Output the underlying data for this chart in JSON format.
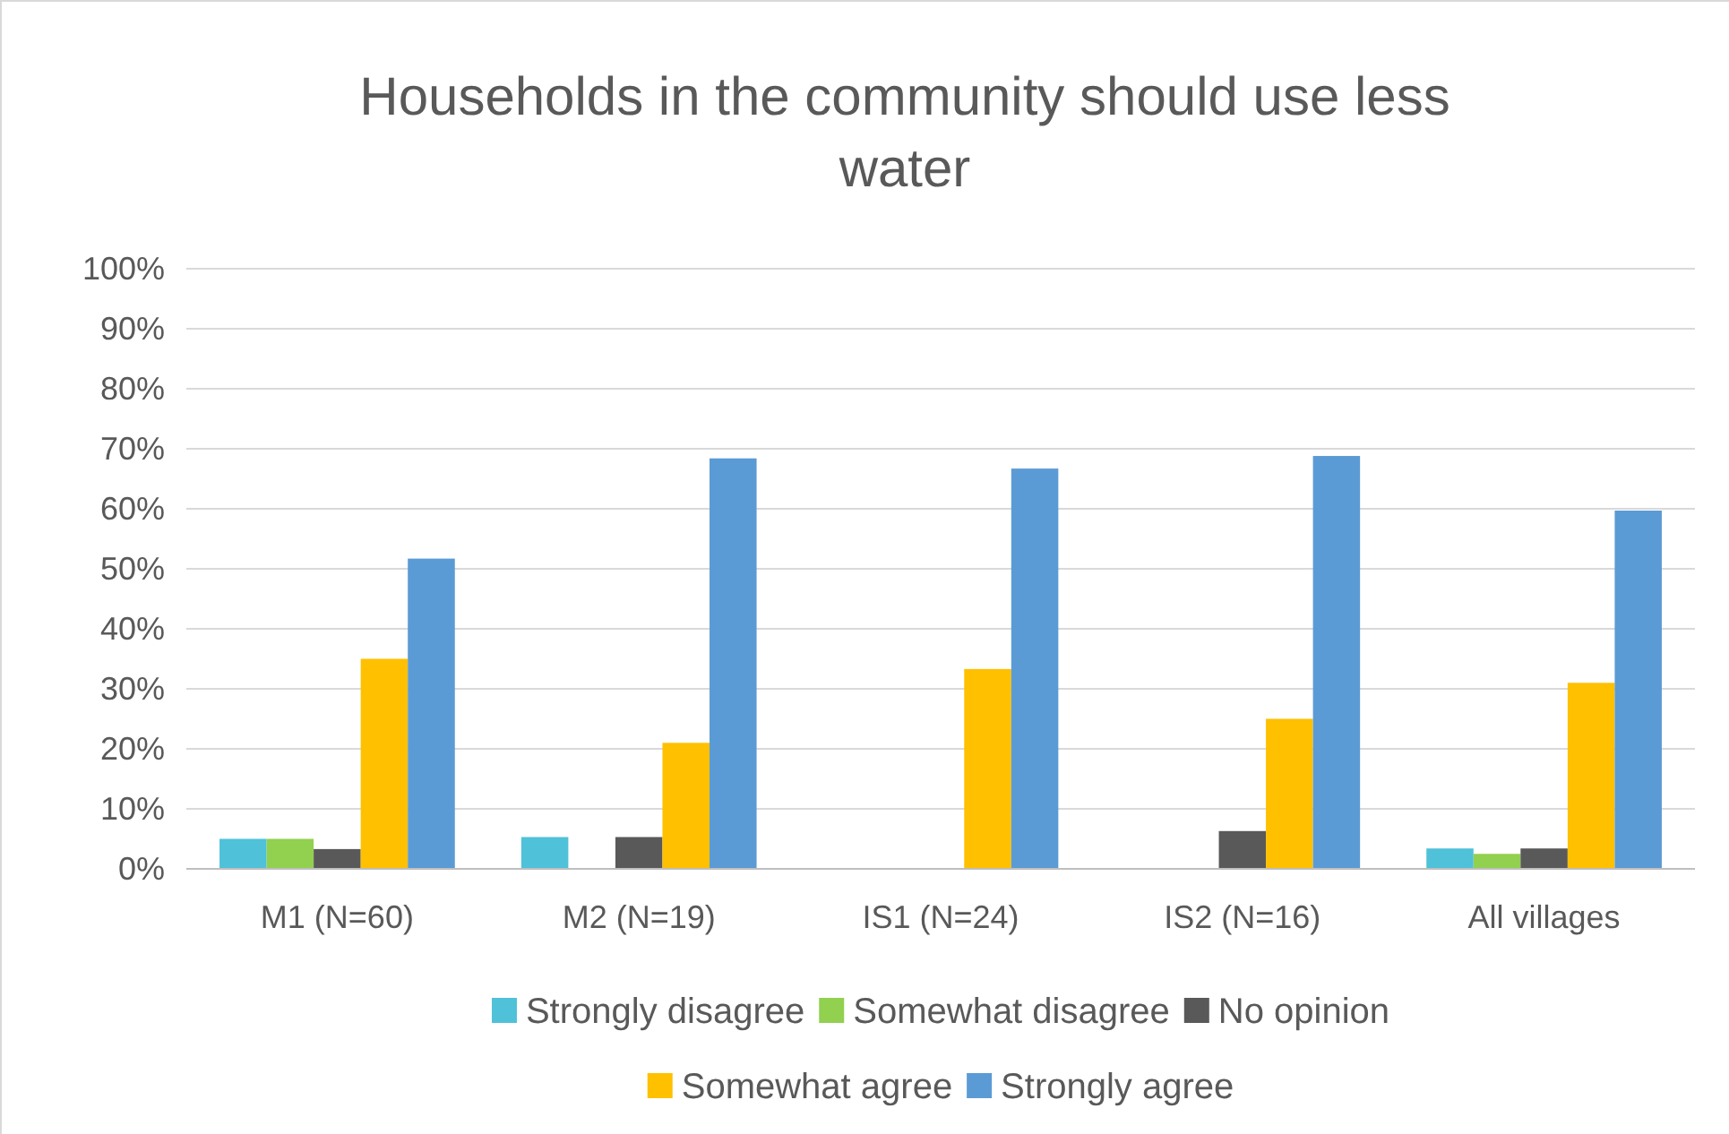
{
  "chart_data": {
    "type": "bar",
    "title": "Households in the community should use less water",
    "categories": [
      "M1 (N=60)",
      "M2 (N=19)",
      "IS1 (N=24)",
      "IS2 (N=16)",
      "All villages"
    ],
    "series": [
      {
        "name": "Strongly disagree",
        "color": "#4fc1d9",
        "values": [
          5,
          5.3,
          0,
          0,
          3.4
        ]
      },
      {
        "name": "Somewhat disagree",
        "color": "#92d050",
        "values": [
          5,
          0,
          0,
          0,
          2.5
        ]
      },
      {
        "name": "No opinion",
        "color": "#595959",
        "values": [
          3.3,
          5.3,
          0,
          6.3,
          3.4
        ]
      },
      {
        "name": "Somewhat agree",
        "color": "#ffc000",
        "values": [
          35,
          21,
          33.3,
          25,
          31
        ]
      },
      {
        "name": "Strongly agree",
        "color": "#5b9bd5",
        "values": [
          51.7,
          68.4,
          66.7,
          68.8,
          59.7
        ]
      }
    ],
    "ylim": [
      0,
      100
    ],
    "yticks": [
      {
        "value": 0,
        "label": "0%"
      },
      {
        "value": 10,
        "label": "10%"
      },
      {
        "value": 20,
        "label": "20%"
      },
      {
        "value": 30,
        "label": "30%"
      },
      {
        "value": 40,
        "label": "40%"
      },
      {
        "value": 50,
        "label": "50%"
      },
      {
        "value": 60,
        "label": "60%"
      },
      {
        "value": 70,
        "label": "70%"
      },
      {
        "value": 80,
        "label": "80%"
      },
      {
        "value": 90,
        "label": "90%"
      },
      {
        "value": 100,
        "label": "100%"
      }
    ],
    "grid": "y",
    "legend": "bottom"
  }
}
